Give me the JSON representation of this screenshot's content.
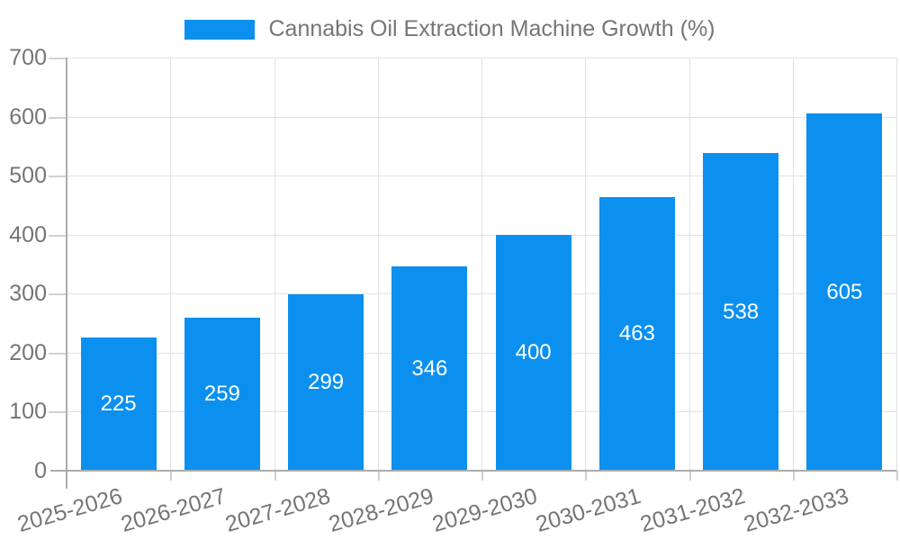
{
  "legend": {
    "label": "Cannabis Oil Extraction Machine Growth (%)"
  },
  "chart_data": {
    "type": "bar",
    "title": "Cannabis Oil Extraction Machine Growth (%)",
    "categories": [
      "2025-2026",
      "2026-2027",
      "2027-2028",
      "2028-2029",
      "2029-2030",
      "2030-2031",
      "2031-2032",
      "2032-2033"
    ],
    "values": [
      225,
      259,
      299,
      346,
      400,
      463,
      538,
      605
    ],
    "xlabel": "",
    "ylabel": "",
    "ylim": [
      0,
      700
    ],
    "ytick_step": 100,
    "grid": true,
    "legend_position": "top",
    "value_labels": "inside-center",
    "colors": {
      "bar": "#0c90ef",
      "gridline": "#e2e2e2",
      "axis_line": "#acacac",
      "tick": "#d2d2d2",
      "axis_text": "#757575",
      "value_text": "#ffffff"
    }
  }
}
